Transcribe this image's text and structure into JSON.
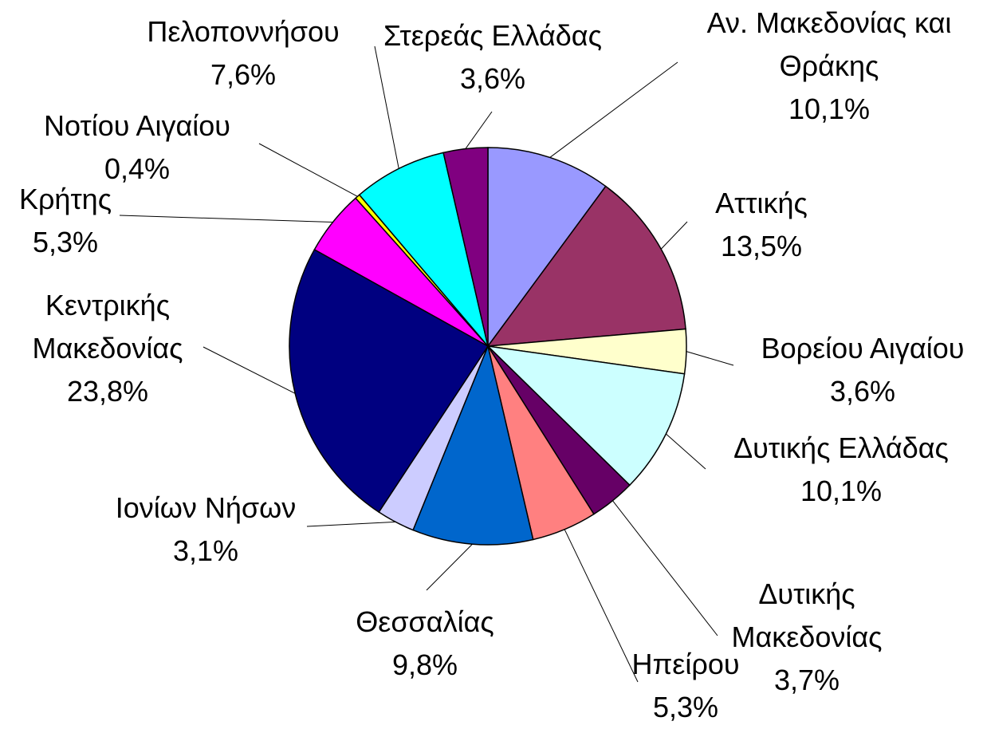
{
  "chart_data": {
    "type": "pie",
    "categories": [
      "Αν. Μακεδονίας και Θράκης",
      "Αττικής",
      "Βορείου Αιγαίου",
      "Δυτικής Ελλάδας",
      "Δυτικής Μακεδονίας",
      "Ηπείρου",
      "Θεσσαλίας",
      "Ιονίων Νήσων",
      "Κεντρικής Μακεδονίας",
      "Κρήτης",
      "Νοτίου Αιγαίου",
      "Πελοποννήσου",
      "Στερεάς Ελλάδας"
    ],
    "values": [
      10.1,
      13.5,
      3.6,
      10.1,
      3.7,
      5.3,
      9.8,
      3.1,
      23.8,
      5.3,
      0.4,
      7.6,
      3.6
    ],
    "value_labels": [
      "10,1%",
      "13,5%",
      "3,6%",
      "10,1%",
      "3,7%",
      "5,3%",
      "9,8%",
      "3,1%",
      "23,8%",
      "5,3%",
      "0,4%",
      "7,6%",
      "3,6%"
    ],
    "colors": [
      "#9999FF",
      "#993366",
      "#FFFFCC",
      "#CCFFFF",
      "#660066",
      "#FF8080",
      "#0066CC",
      "#CCCCFF",
      "#000080",
      "#FF00FF",
      "#FFFF00",
      "#00FFFF",
      "#800080"
    ]
  }
}
